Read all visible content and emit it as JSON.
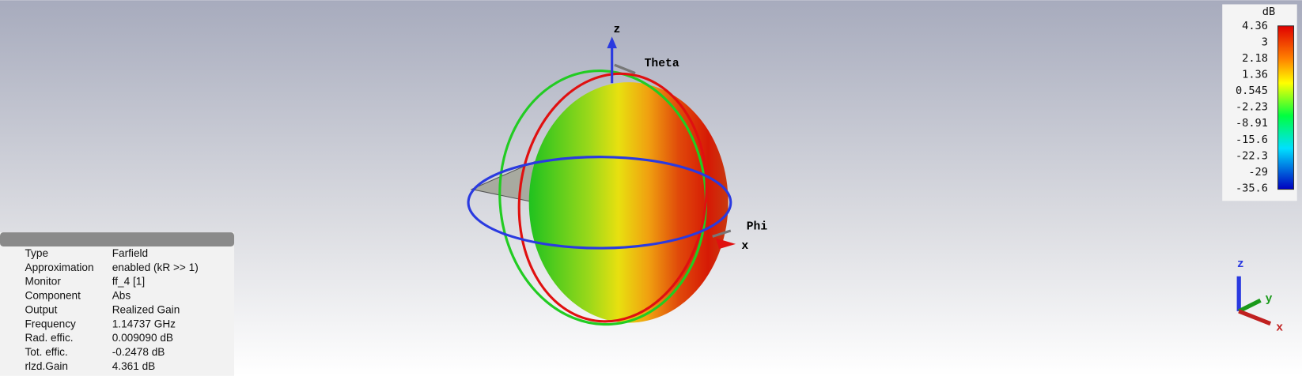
{
  "scene": {
    "axis_labels": {
      "z": "z",
      "theta": "Theta",
      "phi": "Phi",
      "x": "x"
    }
  },
  "info_panel": {
    "rows": [
      [
        "Type",
        "Farfield"
      ],
      [
        "Approximation",
        "enabled (kR >> 1)"
      ],
      [
        "Monitor",
        "ff_4 [1]"
      ],
      [
        "Component",
        "Abs"
      ],
      [
        "Output",
        "Realized Gain"
      ],
      [
        "Frequency",
        "1.14737 GHz"
      ],
      [
        "Rad. effic.",
        "0.009090 dB"
      ],
      [
        "Tot. effic.",
        "-0.2478 dB"
      ],
      [
        "rlzd.Gain",
        "4.361 dB"
      ]
    ]
  },
  "colorbar": {
    "unit": "dB",
    "ticks": [
      "4.36",
      "3",
      "2.18",
      "1.36",
      "0.545",
      "-2.23",
      "-8.91",
      "-15.6",
      "-22.3",
      "-29",
      "-35.6"
    ]
  },
  "triad": {
    "z": "z",
    "y": "y",
    "x": "x"
  }
}
